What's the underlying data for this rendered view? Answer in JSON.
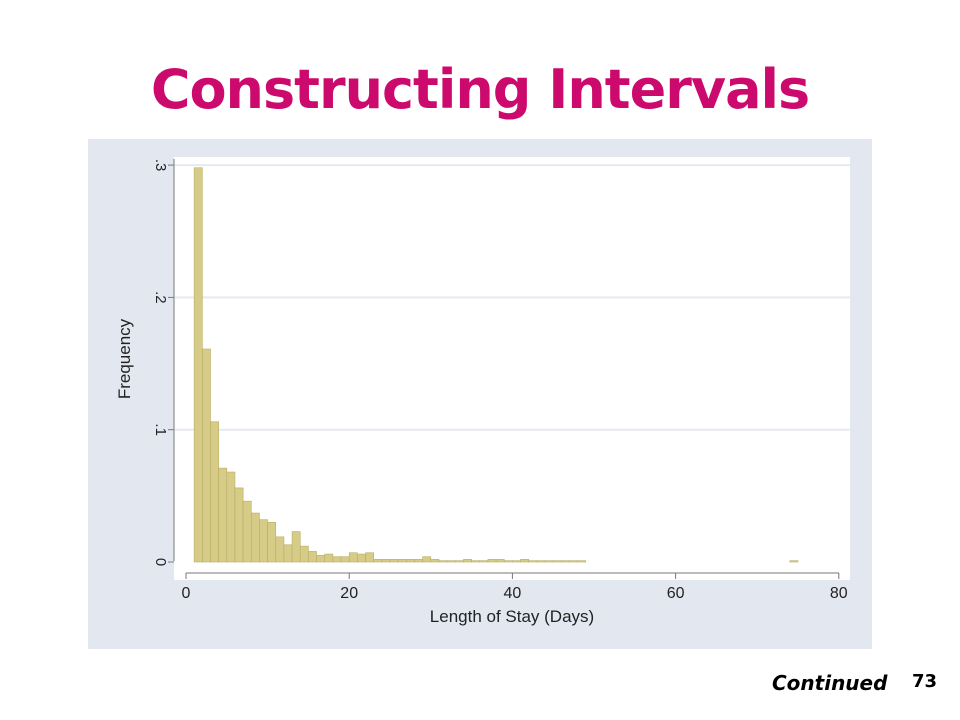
{
  "slide": {
    "title": "Constructing Intervals",
    "continued_label": "Continued",
    "page_number": "73"
  },
  "colors": {
    "title": "#cc0a6e",
    "panel_background": "#e3e8f0",
    "plot_background": "#ffffff",
    "bar_fill": "#d6cc88",
    "bar_stroke": "#b8ad62",
    "gridline": "#e6e9f0"
  },
  "chart_data": {
    "type": "bar",
    "xlabel": "Length of Stay (Days)",
    "ylabel": "Frequency",
    "xlim": [
      0,
      80
    ],
    "ylim": [
      0,
      0.3
    ],
    "x_ticks": [
      0,
      20,
      40,
      60,
      80
    ],
    "x_tick_labels": [
      "0",
      "20",
      "40",
      "60",
      "80"
    ],
    "y_ticks": [
      0,
      0.1,
      0.2,
      0.3
    ],
    "y_tick_labels": [
      "0",
      ".1",
      ".2",
      ".3"
    ],
    "y_tick_labels_rotated": true,
    "grid": "horizontal",
    "bin_width": 1,
    "bin_starts": [
      1,
      2,
      3,
      4,
      5,
      6,
      7,
      8,
      9,
      10,
      11,
      12,
      13,
      14,
      15,
      16,
      17,
      18,
      19,
      20,
      21,
      22,
      23,
      24,
      25,
      26,
      27,
      28,
      29,
      30,
      31,
      32,
      33,
      34,
      35,
      36,
      37,
      38,
      39,
      40,
      41,
      42,
      43,
      44,
      45,
      46,
      47,
      48,
      74
    ],
    "values": [
      0.298,
      0.161,
      0.106,
      0.071,
      0.068,
      0.056,
      0.046,
      0.037,
      0.032,
      0.03,
      0.019,
      0.013,
      0.023,
      0.012,
      0.008,
      0.005,
      0.006,
      0.004,
      0.004,
      0.007,
      0.006,
      0.007,
      0.002,
      0.002,
      0.002,
      0.002,
      0.002,
      0.002,
      0.004,
      0.002,
      0.001,
      0.001,
      0.001,
      0.002,
      0.001,
      0.001,
      0.002,
      0.002,
      0.001,
      0.001,
      0.002,
      0.001,
      0.001,
      0.001,
      0.001,
      0.001,
      0.001,
      0.001,
      0.001
    ]
  }
}
